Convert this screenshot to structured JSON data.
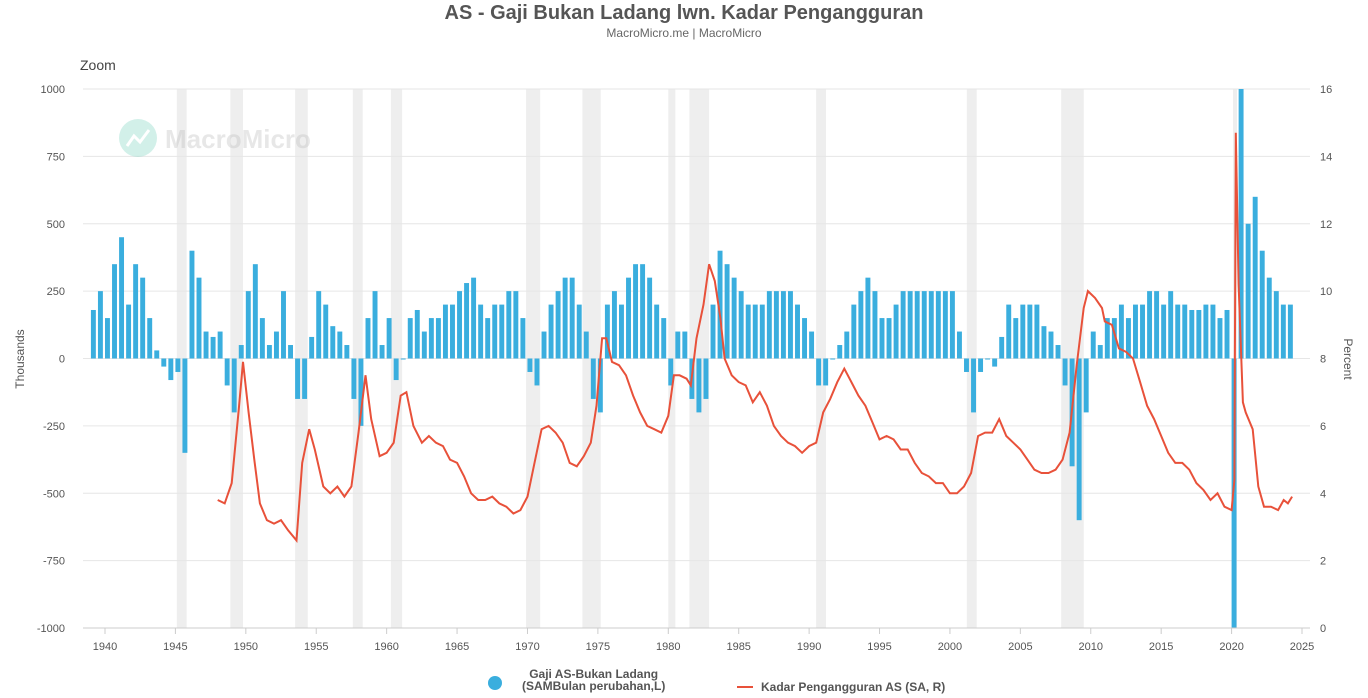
{
  "chart_data": {
    "type": "bar+line",
    "title": "AS - Gaji Bukan Ladang lwn. Kadar Pengangguran",
    "subtitle": "MacroMicro.me | MacroMicro",
    "zoom_label": "Zoom",
    "watermark": "MacroMicro",
    "xlim": [
      1939,
      2025
    ],
    "x_ticks": [
      "1940",
      "1945",
      "1950",
      "1955",
      "1960",
      "1965",
      "1970",
      "1975",
      "1980",
      "1985",
      "1990",
      "1995",
      "2000",
      "2005",
      "2010",
      "2015",
      "2020",
      "2025"
    ],
    "left_axis": {
      "label": "Thousands",
      "ylim": [
        -1000,
        1000
      ],
      "ticks": [
        "1000",
        "750",
        "500",
        "250",
        "0",
        "-250",
        "-500",
        "-750",
        "-1000"
      ]
    },
    "right_axis": {
      "label": "Percent",
      "ylim": [
        0,
        16
      ],
      "ticks": [
        "16",
        "14",
        "12",
        "10",
        "8",
        "6",
        "4",
        "2",
        "0"
      ]
    },
    "recessions": [
      [
        1945.1,
        1945.8
      ],
      [
        1948.9,
        1949.8
      ],
      [
        1953.5,
        1954.4
      ],
      [
        1957.6,
        1958.3
      ],
      [
        1960.3,
        1961.1
      ],
      [
        1969.9,
        1970.9
      ],
      [
        1973.9,
        1975.2
      ],
      [
        1980.0,
        1980.5
      ],
      [
        1981.5,
        1982.9
      ],
      [
        1990.5,
        1991.2
      ],
      [
        2001.2,
        2001.9
      ],
      [
        2007.9,
        2009.5
      ],
      [
        2020.1,
        2020.3
      ]
    ],
    "colors": {
      "bars": "#3aaede",
      "line": "#e8513a",
      "recession": "#eeeeee"
    },
    "series": [
      {
        "name": "Gaji AS-Bukan Ladang (SAMBulan perubahan,L)",
        "name_line1": "Gaji AS-Bukan Ladang",
        "name_line2": "(SAMBulan perubahan,L)",
        "type": "bar",
        "axis": "left",
        "x_start": 1939.0,
        "x_step": 0.5,
        "values": [
          180,
          250,
          150,
          350,
          450,
          200,
          350,
          300,
          150,
          30,
          -30,
          -80,
          -50,
          -350,
          400,
          300,
          100,
          80,
          100,
          -100,
          -200,
          50,
          250,
          350,
          150,
          50,
          100,
          250,
          50,
          -150,
          -150,
          80,
          250,
          200,
          120,
          100,
          50,
          -150,
          -250,
          150,
          250,
          50,
          150,
          -80,
          0,
          150,
          180,
          100,
          150,
          150,
          200,
          200,
          250,
          280,
          300,
          200,
          150,
          200,
          200,
          250,
          250,
          150,
          -50,
          -100,
          100,
          200,
          250,
          300,
          300,
          200,
          100,
          -150,
          -200,
          200,
          250,
          200,
          300,
          350,
          350,
          300,
          200,
          150,
          -100,
          100,
          100,
          -150,
          -200,
          -150,
          200,
          400,
          350,
          300,
          250,
          200,
          200,
          200,
          250,
          250,
          250,
          250,
          200,
          150,
          100,
          -100,
          -100,
          0,
          50,
          100,
          200,
          250,
          300,
          250,
          150,
          150,
          200,
          250,
          250,
          250,
          250,
          250,
          250,
          250,
          250,
          100,
          -50,
          -200,
          -50,
          0,
          -30,
          80,
          200,
          150,
          200,
          200,
          200,
          120,
          100,
          50,
          -100,
          -400,
          -600,
          -200,
          100,
          50,
          150,
          150,
          200,
          150,
          200,
          200,
          250,
          250,
          200,
          250,
          200,
          200,
          180,
          180,
          200,
          200,
          150,
          180,
          -1000,
          1000,
          500,
          600,
          400,
          300,
          250,
          200,
          200
        ]
      },
      {
        "name": "Kadar Pengangguran AS (SA, R)",
        "type": "line",
        "axis": "right",
        "points": [
          [
            1948.0,
            3.8
          ],
          [
            1948.5,
            3.7
          ],
          [
            1949.0,
            4.3
          ],
          [
            1949.5,
            6.5
          ],
          [
            1949.8,
            7.9
          ],
          [
            1950.2,
            6.4
          ],
          [
            1950.6,
            5.0
          ],
          [
            1951.0,
            3.7
          ],
          [
            1951.5,
            3.2
          ],
          [
            1952.0,
            3.1
          ],
          [
            1952.5,
            3.2
          ],
          [
            1953.0,
            2.9
          ],
          [
            1953.6,
            2.6
          ],
          [
            1954.0,
            4.9
          ],
          [
            1954.5,
            5.9
          ],
          [
            1954.9,
            5.3
          ],
          [
            1955.5,
            4.2
          ],
          [
            1956.0,
            4.0
          ],
          [
            1956.5,
            4.2
          ],
          [
            1957.0,
            3.9
          ],
          [
            1957.5,
            4.2
          ],
          [
            1958.0,
            5.8
          ],
          [
            1958.5,
            7.5
          ],
          [
            1958.9,
            6.2
          ],
          [
            1959.5,
            5.1
          ],
          [
            1960.0,
            5.2
          ],
          [
            1960.5,
            5.5
          ],
          [
            1961.0,
            6.9
          ],
          [
            1961.4,
            7.0
          ],
          [
            1961.9,
            6.0
          ],
          [
            1962.5,
            5.5
          ],
          [
            1963.0,
            5.7
          ],
          [
            1963.5,
            5.5
          ],
          [
            1964.0,
            5.4
          ],
          [
            1964.5,
            5.0
          ],
          [
            1965.0,
            4.9
          ],
          [
            1965.5,
            4.5
          ],
          [
            1966.0,
            4.0
          ],
          [
            1966.5,
            3.8
          ],
          [
            1967.0,
            3.8
          ],
          [
            1967.5,
            3.9
          ],
          [
            1968.0,
            3.7
          ],
          [
            1968.5,
            3.6
          ],
          [
            1969.0,
            3.4
          ],
          [
            1969.5,
            3.5
          ],
          [
            1970.0,
            3.9
          ],
          [
            1970.5,
            4.9
          ],
          [
            1971.0,
            5.9
          ],
          [
            1971.5,
            6.0
          ],
          [
            1972.0,
            5.8
          ],
          [
            1972.5,
            5.5
          ],
          [
            1973.0,
            4.9
          ],
          [
            1973.5,
            4.8
          ],
          [
            1974.0,
            5.1
          ],
          [
            1974.5,
            5.5
          ],
          [
            1974.9,
            6.6
          ],
          [
            1975.3,
            8.6
          ],
          [
            1975.6,
            8.6
          ],
          [
            1976.0,
            7.9
          ],
          [
            1976.5,
            7.8
          ],
          [
            1977.0,
            7.5
          ],
          [
            1977.5,
            6.9
          ],
          [
            1978.0,
            6.4
          ],
          [
            1978.5,
            6.0
          ],
          [
            1979.0,
            5.9
          ],
          [
            1979.5,
            5.8
          ],
          [
            1980.0,
            6.3
          ],
          [
            1980.4,
            7.5
          ],
          [
            1980.8,
            7.5
          ],
          [
            1981.3,
            7.4
          ],
          [
            1981.6,
            7.2
          ],
          [
            1982.0,
            8.6
          ],
          [
            1982.5,
            9.6
          ],
          [
            1982.9,
            10.8
          ],
          [
            1983.3,
            10.3
          ],
          [
            1983.7,
            9.2
          ],
          [
            1984.0,
            8.0
          ],
          [
            1984.5,
            7.5
          ],
          [
            1985.0,
            7.3
          ],
          [
            1985.5,
            7.2
          ],
          [
            1986.0,
            6.7
          ],
          [
            1986.5,
            7.0
          ],
          [
            1987.0,
            6.6
          ],
          [
            1987.5,
            6.0
          ],
          [
            1988.0,
            5.7
          ],
          [
            1988.5,
            5.5
          ],
          [
            1989.0,
            5.4
          ],
          [
            1989.5,
            5.2
          ],
          [
            1990.0,
            5.4
          ],
          [
            1990.5,
            5.5
          ],
          [
            1991.0,
            6.4
          ],
          [
            1991.5,
            6.8
          ],
          [
            1992.0,
            7.3
          ],
          [
            1992.5,
            7.7
          ],
          [
            1993.0,
            7.3
          ],
          [
            1993.5,
            6.9
          ],
          [
            1994.0,
            6.6
          ],
          [
            1994.5,
            6.1
          ],
          [
            1995.0,
            5.6
          ],
          [
            1995.5,
            5.7
          ],
          [
            1996.0,
            5.6
          ],
          [
            1996.5,
            5.3
          ],
          [
            1997.0,
            5.3
          ],
          [
            1997.5,
            4.9
          ],
          [
            1998.0,
            4.6
          ],
          [
            1998.5,
            4.5
          ],
          [
            1999.0,
            4.3
          ],
          [
            1999.5,
            4.3
          ],
          [
            2000.0,
            4.0
          ],
          [
            2000.5,
            4.0
          ],
          [
            2001.0,
            4.2
          ],
          [
            2001.5,
            4.6
          ],
          [
            2002.0,
            5.7
          ],
          [
            2002.5,
            5.8
          ],
          [
            2003.0,
            5.8
          ],
          [
            2003.5,
            6.2
          ],
          [
            2004.0,
            5.7
          ],
          [
            2004.5,
            5.5
          ],
          [
            2005.0,
            5.3
          ],
          [
            2005.5,
            5.0
          ],
          [
            2006.0,
            4.7
          ],
          [
            2006.5,
            4.6
          ],
          [
            2007.0,
            4.6
          ],
          [
            2007.5,
            4.7
          ],
          [
            2008.0,
            5.0
          ],
          [
            2008.5,
            5.8
          ],
          [
            2009.0,
            7.8
          ],
          [
            2009.5,
            9.5
          ],
          [
            2009.8,
            10.0
          ],
          [
            2010.3,
            9.8
          ],
          [
            2010.8,
            9.5
          ],
          [
            2011.0,
            9.1
          ],
          [
            2011.5,
            9.0
          ],
          [
            2012.0,
            8.3
          ],
          [
            2012.5,
            8.2
          ],
          [
            2013.0,
            8.0
          ],
          [
            2013.5,
            7.3
          ],
          [
            2014.0,
            6.6
          ],
          [
            2014.5,
            6.2
          ],
          [
            2015.0,
            5.7
          ],
          [
            2015.5,
            5.2
          ],
          [
            2016.0,
            4.9
          ],
          [
            2016.5,
            4.9
          ],
          [
            2017.0,
            4.7
          ],
          [
            2017.5,
            4.3
          ],
          [
            2018.0,
            4.1
          ],
          [
            2018.5,
            3.8
          ],
          [
            2019.0,
            4.0
          ],
          [
            2019.5,
            3.6
          ],
          [
            2020.0,
            3.5
          ],
          [
            2020.2,
            4.4
          ],
          [
            2020.3,
            14.7
          ],
          [
            2020.5,
            10.2
          ],
          [
            2020.8,
            6.7
          ],
          [
            2021.0,
            6.4
          ],
          [
            2021.5,
            5.9
          ],
          [
            2021.9,
            4.2
          ],
          [
            2022.3,
            3.6
          ],
          [
            2022.8,
            3.6
          ],
          [
            2023.3,
            3.5
          ],
          [
            2023.7,
            3.8
          ],
          [
            2024.0,
            3.7
          ],
          [
            2024.3,
            3.9
          ]
        ]
      }
    ],
    "legend_position": "bottom"
  }
}
